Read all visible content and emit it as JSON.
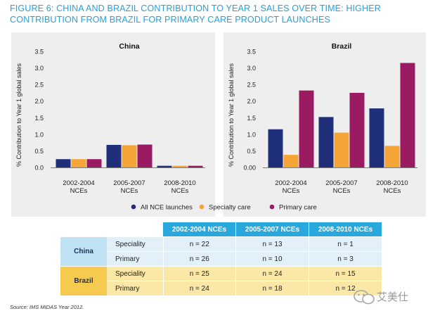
{
  "title": "FIGURE 6: CHINA AND BRAZIL CONTRIBUTION TO YEAR 1 SALES OVER TIME: HIGHER CONTRIBUTION FROM BRAZIL FOR PRIMARY CARE PRODUCT LAUNCHES",
  "chart_data": [
    {
      "type": "bar",
      "title": "China",
      "ylabel": "% Contribution to Year 1 global sales",
      "ylim": [
        0,
        3.5
      ],
      "yticks": [
        "0.0",
        "0.5",
        "1.0",
        "1.5",
        "2.0",
        "2.5",
        "3.0",
        "3.5"
      ],
      "categories": [
        "2002-2004 NCEs",
        "2005-2007 NCEs",
        "2008-2010 NCEs"
      ],
      "series": [
        {
          "name": "All NCE launches",
          "color": "#1f2f7a",
          "values": [
            0.25,
            0.68,
            0.05
          ]
        },
        {
          "name": "Specialty care",
          "color": "#f5a538",
          "values": [
            0.25,
            0.67,
            0.05
          ]
        },
        {
          "name": "Primary care",
          "color": "#9b1b62",
          "values": [
            0.25,
            0.69,
            0.05
          ]
        }
      ]
    },
    {
      "type": "bar",
      "title": "Brazil",
      "ylabel": "% Contribution to Year 1 global sales",
      "ylim": [
        0,
        3.5
      ],
      "yticks": [
        "0.00",
        "0.5",
        "1.0",
        "1.5",
        "2.0",
        "2.5",
        "3.0",
        "3.5"
      ],
      "categories": [
        "2002-2004 NCEs",
        "2005-2007 NCEs",
        "2008-2010 NCEs"
      ],
      "series": [
        {
          "name": "All NCE launches",
          "color": "#1f2f7a",
          "values": [
            1.15,
            1.52,
            1.78
          ]
        },
        {
          "name": "Specialty care",
          "color": "#f5a538",
          "values": [
            0.38,
            1.05,
            0.65
          ]
        },
        {
          "name": "Primary care",
          "color": "#9b1b62",
          "values": [
            2.32,
            2.25,
            3.15
          ]
        }
      ]
    }
  ],
  "legend": [
    {
      "label": "All NCE launches",
      "color": "#1f2f7a"
    },
    {
      "label": "Specialty care",
      "color": "#f5a538"
    },
    {
      "label": "Primary care",
      "color": "#9b1b62"
    }
  ],
  "table": {
    "headers": [
      "2002-2004 NCEs",
      "2005-2007 NCEs",
      "2008-2010 NCEs"
    ],
    "china": {
      "label": "China",
      "rows": [
        {
          "label": "Speciality",
          "values": [
            "n = 22",
            "n = 13",
            "n = 1"
          ]
        },
        {
          "label": "Primary",
          "values": [
            "n = 26",
            "n = 10",
            "n = 3"
          ]
        }
      ]
    },
    "brazil": {
      "label": "Brazil",
      "rows": [
        {
          "label": "Speciality",
          "values": [
            "n = 25",
            "n = 24",
            "n = 15"
          ]
        },
        {
          "label": "Primary",
          "values": [
            "n = 24",
            "n = 18",
            "n = 12"
          ]
        }
      ]
    }
  },
  "source": "Source: IMS MIDAS Year 2012.",
  "watermark": "艾美仕"
}
